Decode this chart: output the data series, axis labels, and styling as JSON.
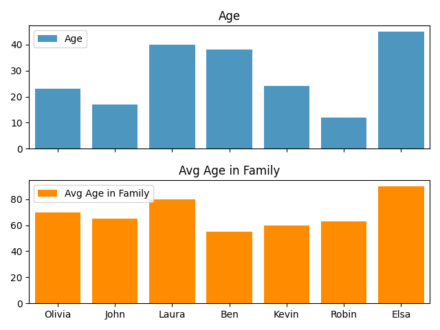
{
  "names": [
    "Olivia",
    "John",
    "Laura",
    "Ben",
    "Kevin",
    "Robin",
    "Elsa"
  ],
  "age": [
    23,
    17,
    40,
    38,
    24,
    12,
    45
  ],
  "avg_age_family": [
    70,
    65,
    80,
    55,
    60,
    63,
    90
  ],
  "age_color": "#4C96C0",
  "avg_age_color": "#FF8C00",
  "title_age": "Age",
  "title_avg": "Avg Age in Family",
  "legend_age": "Age",
  "legend_avg": "Avg Age in Family"
}
